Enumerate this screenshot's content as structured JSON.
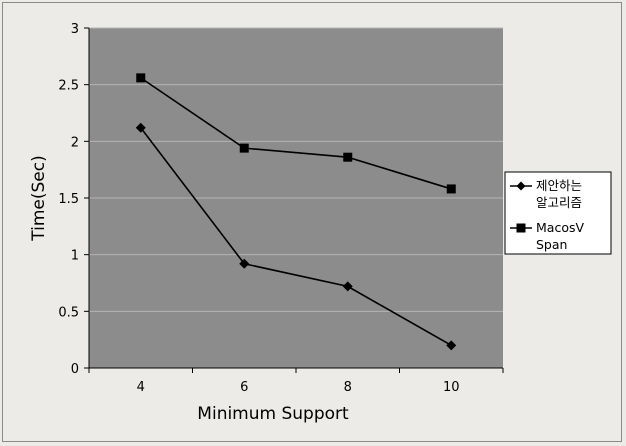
{
  "chart_data": {
    "type": "line",
    "title": "",
    "xlabel": "Minimum Support",
    "ylabel": "Time(Sec)",
    "categories": [
      "4",
      "6",
      "8",
      "10"
    ],
    "ylim": [
      0,
      3
    ],
    "yticks": [
      "0",
      "0.5",
      "1",
      "1.5",
      "2",
      "2.5",
      "3"
    ],
    "grid": true,
    "legend_position": "right",
    "series": [
      {
        "name": "제안하는 알고리즘",
        "marker": "diamond",
        "values": [
          2.12,
          0.92,
          0.72,
          0.2
        ]
      },
      {
        "name": "MacosV Span",
        "marker": "square",
        "values": [
          2.56,
          1.94,
          1.86,
          1.58
        ]
      }
    ],
    "legend": {
      "entries": [
        {
          "lines": [
            "제안하는",
            "알고리즘"
          ]
        },
        {
          "lines": [
            "MacosV",
            "Span"
          ]
        }
      ]
    },
    "colors": {
      "plot_bg": "#8c8c8c",
      "grid": "#b4b4b4",
      "line": "#000000",
      "page_bg": "#ecebe8",
      "legend_bg": "#ffffff"
    }
  }
}
